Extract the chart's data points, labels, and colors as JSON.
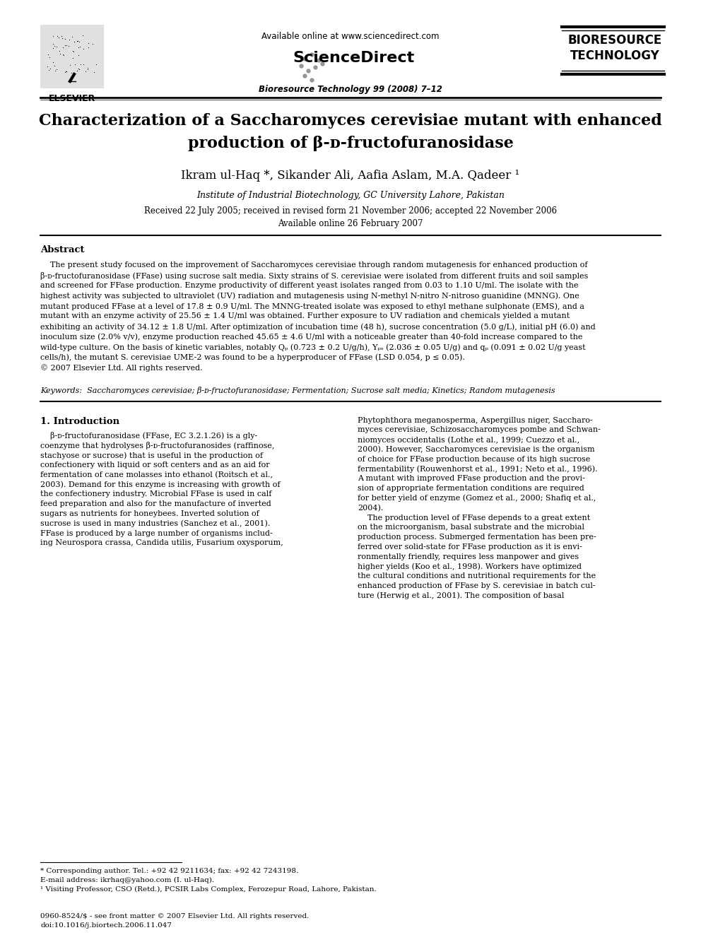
{
  "page_title_line1": "Characterization of a Saccharomyces cerevisiae mutant with enhanced",
  "page_title_line2": "production of β-ᴅ-fructofuranosidase",
  "authors": "Ikram ul-Haq *, Sikander Ali, Aafia Aslam, M.A. Qadeer ¹",
  "affiliation": "Institute of Industrial Biotechnology, GC University Lahore, Pakistan",
  "received": "Received 22 July 2005; received in revised form 21 November 2006; accepted 22 November 2006",
  "available": "Available online 26 February 2007",
  "journal": "Bioresource Technology 99 (2008) 7–12",
  "available_online": "Available online at www.sciencedirect.com",
  "sciencedirect": "ScienceDirect",
  "bioresource_line1": "BIORESOURCE",
  "bioresource_line2": "TECHNOLOGY",
  "elsevier_text": "ELSEVIER",
  "abstract_title": "Abstract",
  "keywords": "Keywords:  Saccharomyces cerevisiae; β-ᴅ-fructofuranosidase; Fermentation; Sucrose salt media; Kinetics; Random mutagenesis",
  "section1_title": "1. Introduction",
  "footnote1": "* Corresponding author. Tel.: +92 42 9211634; fax: +92 42 7243198.",
  "footnote2": "E-mail address: ikrhaq@yahoo.com (I. ul-Haq).",
  "footnote3": "¹ Visiting Professor, CSO (Retd.), PCSIR Labs Complex, Ferozepur Road, Lahore, Pakistan.",
  "copyright_line": "0960-8524/$ - see front matter © 2007 Elsevier Ltd. All rights reserved.",
  "doi_line": "doi:10.1016/j.biortech.2006.11.047",
  "bg_color": "#ffffff",
  "text_color": "#000000"
}
